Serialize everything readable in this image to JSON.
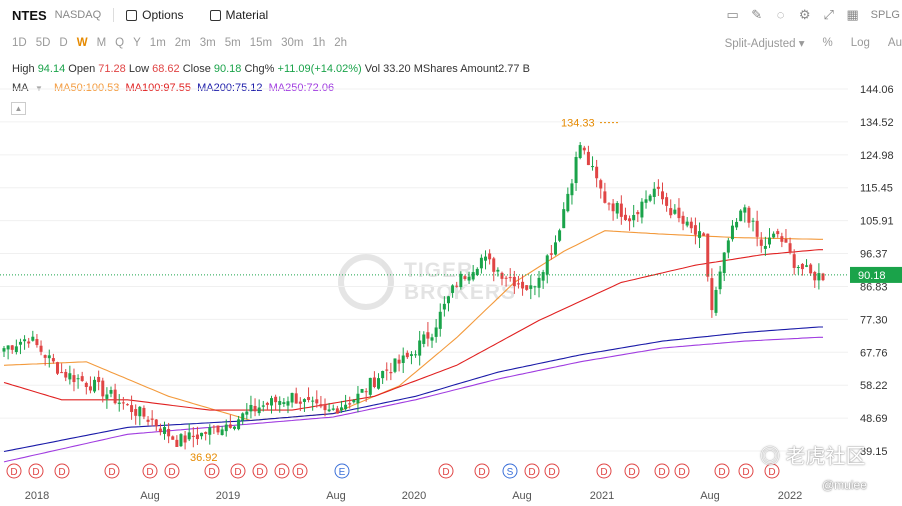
{
  "header": {
    "symbol": "NTES",
    "exchange": "NASDAQ",
    "options_label": "Options",
    "material_label": "Material",
    "right_label": "SPLG"
  },
  "periods": [
    "1D",
    "5D",
    "D",
    "W",
    "M",
    "Q",
    "Y",
    "1m",
    "2m",
    "3m",
    "5m",
    "15m",
    "30m",
    "1h",
    "2h"
  ],
  "active_period": "W",
  "controls": {
    "adjust": "Split-Adjusted ▾",
    "percent": "%",
    "log": "Log",
    "auto": "Au"
  },
  "quote": {
    "high_label": "High",
    "high": "94.14",
    "open_label": "Open",
    "open": "71.28",
    "low_label": "Low",
    "low": "68.62",
    "close_label": "Close",
    "close": "90.18",
    "chg_label": "Chg%",
    "chg": "+11.09(+14.02%)",
    "vol_label": "Vol",
    "vol": "33.20 MShares",
    "amount_label": "Amount",
    "amount": "2.77 B"
  },
  "ma": {
    "label": "MA",
    "ma50": "MA50:100.53",
    "ma100": "MA100:97.55",
    "ma200": "MA200:75.12",
    "ma250": "MA250:72.06"
  },
  "colors": {
    "up": "#1aa34a",
    "down": "#e04545",
    "ma50": "#f39a3c",
    "ma100": "#e02020",
    "ma200": "#1a1aa8",
    "ma250": "#a03ce0",
    "accent": "#e68a00"
  },
  "chart_data": {
    "type": "candlestick",
    "y_ticks": [
      "144.06",
      "134.52",
      "124.98",
      "115.45",
      "105.91",
      "96.37",
      "86.83",
      "77.30",
      "67.76",
      "58.22",
      "48.69",
      "39.15"
    ],
    "x_ticks": [
      "2018",
      "Aug",
      "2019",
      "Aug",
      "2020",
      "Aug",
      "2021",
      "Aug",
      "2022"
    ],
    "ylim": [
      39.15,
      144.06
    ],
    "last_price": "90.18",
    "max_label": "134.33",
    "min_label": "36.92",
    "event_markers": [
      "D",
      "D",
      "D",
      "D",
      "D",
      "D",
      "D",
      "D",
      "D",
      "D",
      "D",
      "E",
      "D",
      "D",
      "S",
      "D",
      "D",
      "D",
      "D",
      "D",
      "D",
      "D",
      "D",
      "D"
    ],
    "close_anchors": [
      [
        0,
        69
      ],
      [
        6,
        72
      ],
      [
        14,
        62
      ],
      [
        22,
        58
      ],
      [
        30,
        52
      ],
      [
        36,
        48
      ],
      [
        42,
        42
      ],
      [
        48,
        44
      ],
      [
        56,
        48
      ],
      [
        62,
        52
      ],
      [
        70,
        55
      ],
      [
        78,
        50
      ],
      [
        86,
        55
      ],
      [
        92,
        62
      ],
      [
        98,
        66
      ],
      [
        104,
        74
      ],
      [
        110,
        88
      ],
      [
        116,
        95
      ],
      [
        122,
        90
      ],
      [
        128,
        86
      ],
      [
        134,
        100
      ],
      [
        140,
        128
      ],
      [
        146,
        112
      ],
      [
        152,
        107
      ],
      [
        158,
        115
      ],
      [
        164,
        106
      ],
      [
        170,
        100
      ],
      [
        172,
        80
      ],
      [
        176,
        100
      ],
      [
        180,
        110
      ],
      [
        184,
        98
      ],
      [
        188,
        102
      ],
      [
        192,
        94
      ],
      [
        196,
        90
      ]
    ],
    "ma50_anchors": [
      [
        0,
        64
      ],
      [
        20,
        65
      ],
      [
        40,
        55
      ],
      [
        60,
        48
      ],
      [
        80,
        50
      ],
      [
        96,
        58
      ],
      [
        110,
        72
      ],
      [
        124,
        88
      ],
      [
        136,
        97
      ],
      [
        146,
        103
      ],
      [
        160,
        102
      ],
      [
        178,
        101
      ],
      [
        198,
        100.5
      ]
    ],
    "ma100_anchors": [
      [
        0,
        59
      ],
      [
        14,
        54
      ],
      [
        30,
        54
      ],
      [
        50,
        51
      ],
      [
        70,
        51
      ],
      [
        90,
        55
      ],
      [
        110,
        64
      ],
      [
        130,
        77
      ],
      [
        150,
        88
      ],
      [
        168,
        93
      ],
      [
        184,
        96
      ],
      [
        198,
        97.5
      ]
    ],
    "ma200_anchors": [
      [
        0,
        39
      ],
      [
        30,
        46
      ],
      [
        60,
        48
      ],
      [
        80,
        50
      ],
      [
        100,
        55
      ],
      [
        120,
        62
      ],
      [
        140,
        67
      ],
      [
        160,
        71
      ],
      [
        180,
        73.5
      ],
      [
        198,
        75.1
      ]
    ],
    "ma250_anchors": [
      [
        0,
        36
      ],
      [
        30,
        44
      ],
      [
        60,
        47
      ],
      [
        80,
        49
      ],
      [
        100,
        54
      ],
      [
        120,
        60
      ],
      [
        140,
        65
      ],
      [
        160,
        69
      ],
      [
        180,
        71
      ],
      [
        198,
        72.1
      ]
    ]
  }
}
